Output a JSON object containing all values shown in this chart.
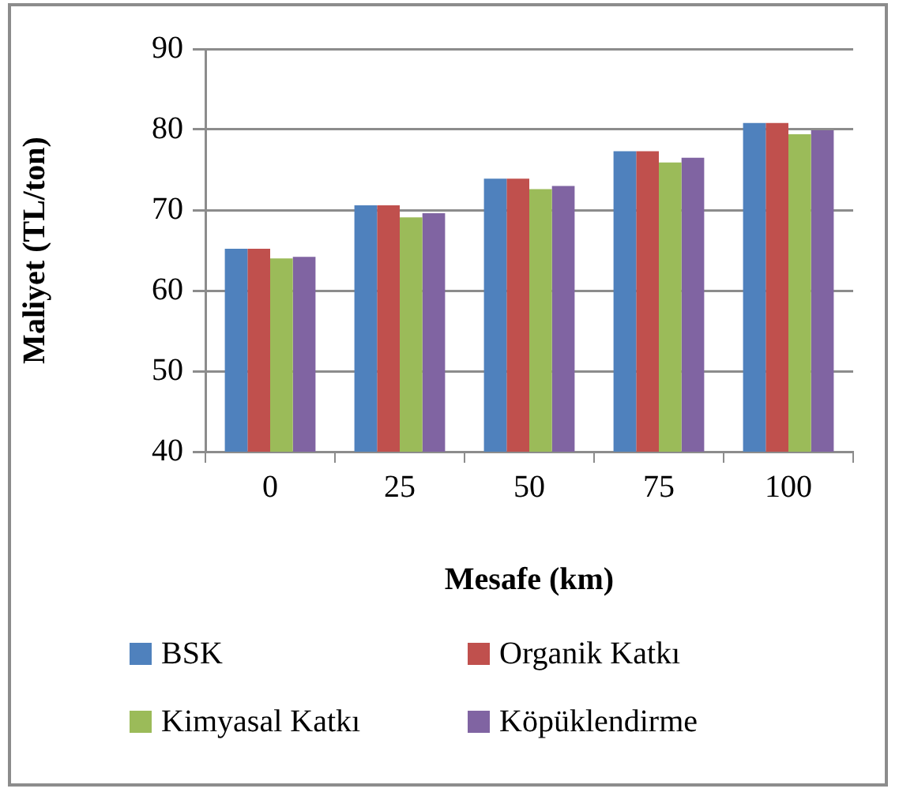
{
  "chart_data": {
    "type": "bar",
    "xlabel": "Mesafe (km)",
    "ylabel": "Maliyet (TL/ton)",
    "categories": [
      "0",
      "25",
      "50",
      "75",
      "100"
    ],
    "series": [
      {
        "name": "BSK",
        "color": "#4f81bd",
        "values": [
          65.2,
          70.6,
          73.9,
          77.3,
          80.8
        ]
      },
      {
        "name": "Organik Katkı",
        "color": "#c0504d",
        "values": [
          65.2,
          70.6,
          73.9,
          77.3,
          80.8
        ]
      },
      {
        "name": "Kimyasal Katkı",
        "color": "#9bbb59",
        "values": [
          64.0,
          69.1,
          72.6,
          75.9,
          79.4
        ]
      },
      {
        "name": "Köpüklendirme",
        "color": "#8064a2",
        "values": [
          64.2,
          69.6,
          73.0,
          76.5,
          79.9
        ]
      }
    ],
    "ylim": [
      40,
      90
    ],
    "yticks": [
      40,
      50,
      60,
      70,
      80,
      90
    ],
    "grid": "y",
    "legend": "bottom"
  }
}
